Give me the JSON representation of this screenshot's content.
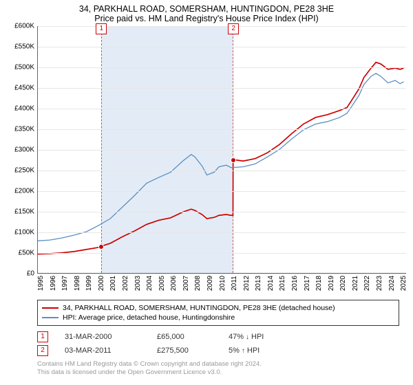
{
  "title": {
    "line1": "34, PARKHALL ROAD, SOMERSHAM, HUNTINGDON, PE28 3HE",
    "line2": "Price paid vs. HM Land Registry's House Price Index (HPI)"
  },
  "chart": {
    "type": "line",
    "background_color": "#ffffff",
    "grid_color": "#e6e6e6",
    "axis_color": "#666666",
    "band_fill": "#e0ebf6",
    "band_dash_color": "#cc4444",
    "ylim": [
      0,
      600000
    ],
    "ytick_step": 50000,
    "yticks": [
      "£0",
      "£50K",
      "£100K",
      "£150K",
      "£200K",
      "£250K",
      "£300K",
      "£350K",
      "£400K",
      "£450K",
      "£500K",
      "£550K",
      "£600K"
    ],
    "x_years": [
      1995,
      1996,
      1997,
      1998,
      1999,
      2000,
      2001,
      2002,
      2003,
      2004,
      2005,
      2006,
      2007,
      2008,
      2009,
      2010,
      2011,
      2012,
      2013,
      2014,
      2015,
      2016,
      2017,
      2018,
      2019,
      2020,
      2021,
      2022,
      2023,
      2024,
      2025
    ],
    "x_min": 1995,
    "x_max": 2025.5,
    "band": {
      "start": 2000.25,
      "end": 2011.17
    },
    "marker_boxes": [
      {
        "label": "1",
        "x": 2000.25,
        "above": true
      },
      {
        "label": "2",
        "x": 2011.17,
        "above": true
      }
    ],
    "series": [
      {
        "name": "price_paid",
        "color": "#cc0000",
        "width": 1.7,
        "legend": "34, PARKHALL ROAD, SOMERSHAM, HUNTINGDON, PE28 3HE (detached house)",
        "points": [
          [
            1995.0,
            46000
          ],
          [
            1996.0,
            47000
          ],
          [
            1997.0,
            49000
          ],
          [
            1998.0,
            52000
          ],
          [
            1999.0,
            57000
          ],
          [
            2000.0,
            62000
          ],
          [
            2000.25,
            65000
          ],
          [
            2001.0,
            72000
          ],
          [
            2002.0,
            88000
          ],
          [
            2003.0,
            102000
          ],
          [
            2004.0,
            118000
          ],
          [
            2005.0,
            128000
          ],
          [
            2006.0,
            134000
          ],
          [
            2007.0,
            148000
          ],
          [
            2007.7,
            155000
          ],
          [
            2008.0,
            152000
          ],
          [
            2008.6,
            142000
          ],
          [
            2009.0,
            132000
          ],
          [
            2009.6,
            135000
          ],
          [
            2010.0,
            140000
          ],
          [
            2010.6,
            142000
          ],
          [
            2011.0,
            140000
          ],
          [
            2011.16,
            140000
          ],
          [
            2011.17,
            275500
          ],
          [
            2012.0,
            272000
          ],
          [
            2013.0,
            278000
          ],
          [
            2014.0,
            292000
          ],
          [
            2015.0,
            312000
          ],
          [
            2016.0,
            338000
          ],
          [
            2017.0,
            362000
          ],
          [
            2018.0,
            378000
          ],
          [
            2019.0,
            385000
          ],
          [
            2020.0,
            395000
          ],
          [
            2020.6,
            402000
          ],
          [
            2021.0,
            420000
          ],
          [
            2021.6,
            448000
          ],
          [
            2022.0,
            475000
          ],
          [
            2022.6,
            498000
          ],
          [
            2023.0,
            512000
          ],
          [
            2023.4,
            508000
          ],
          [
            2024.0,
            495000
          ],
          [
            2024.6,
            498000
          ],
          [
            2025.0,
            495000
          ],
          [
            2025.3,
            498000
          ]
        ],
        "sale_points": [
          {
            "x": 2000.25,
            "y": 65000,
            "color": "#cc0000"
          },
          {
            "x": 2011.17,
            "y": 275500,
            "color": "#cc0000"
          }
        ]
      },
      {
        "name": "hpi",
        "color": "#5b8ec4",
        "width": 1.3,
        "legend": "HPI: Average price, detached house, Huntingdonshire",
        "points": [
          [
            1995.0,
            78000
          ],
          [
            1996.0,
            80000
          ],
          [
            1997.0,
            85000
          ],
          [
            1998.0,
            92000
          ],
          [
            1999.0,
            100000
          ],
          [
            2000.0,
            115000
          ],
          [
            2001.0,
            132000
          ],
          [
            2002.0,
            160000
          ],
          [
            2003.0,
            188000
          ],
          [
            2004.0,
            218000
          ],
          [
            2005.0,
            232000
          ],
          [
            2006.0,
            245000
          ],
          [
            2007.0,
            272000
          ],
          [
            2007.7,
            288000
          ],
          [
            2008.0,
            282000
          ],
          [
            2008.6,
            260000
          ],
          [
            2009.0,
            238000
          ],
          [
            2009.6,
            245000
          ],
          [
            2010.0,
            258000
          ],
          [
            2010.6,
            262000
          ],
          [
            2011.0,
            256000
          ],
          [
            2012.0,
            258000
          ],
          [
            2013.0,
            265000
          ],
          [
            2014.0,
            282000
          ],
          [
            2015.0,
            300000
          ],
          [
            2016.0,
            325000
          ],
          [
            2017.0,
            348000
          ],
          [
            2018.0,
            362000
          ],
          [
            2019.0,
            368000
          ],
          [
            2020.0,
            378000
          ],
          [
            2020.6,
            388000
          ],
          [
            2021.0,
            405000
          ],
          [
            2021.6,
            432000
          ],
          [
            2022.0,
            458000
          ],
          [
            2022.6,
            478000
          ],
          [
            2023.0,
            485000
          ],
          [
            2023.4,
            478000
          ],
          [
            2024.0,
            462000
          ],
          [
            2024.6,
            468000
          ],
          [
            2025.0,
            460000
          ],
          [
            2025.3,
            465000
          ]
        ]
      }
    ],
    "tick_fontsize": 10,
    "title_fontsize": 12.5,
    "legend_fontsize": 10.5
  },
  "sales": [
    {
      "marker": "1",
      "date": "31-MAR-2000",
      "price": "£65,000",
      "diff_pct": "47%",
      "diff_dir": "down",
      "diff_label": "HPI"
    },
    {
      "marker": "2",
      "date": "03-MAR-2011",
      "price": "£275,500",
      "diff_pct": "5%",
      "diff_dir": "up",
      "diff_label": "HPI"
    }
  ],
  "attribution": {
    "line1": "Contains HM Land Registry data © Crown copyright and database right 2024.",
    "line2": "This data is licensed under the Open Government Licence v3.0."
  },
  "colors": {
    "marker_border": "#cc0000",
    "text": "#000000",
    "muted": "#999999"
  }
}
